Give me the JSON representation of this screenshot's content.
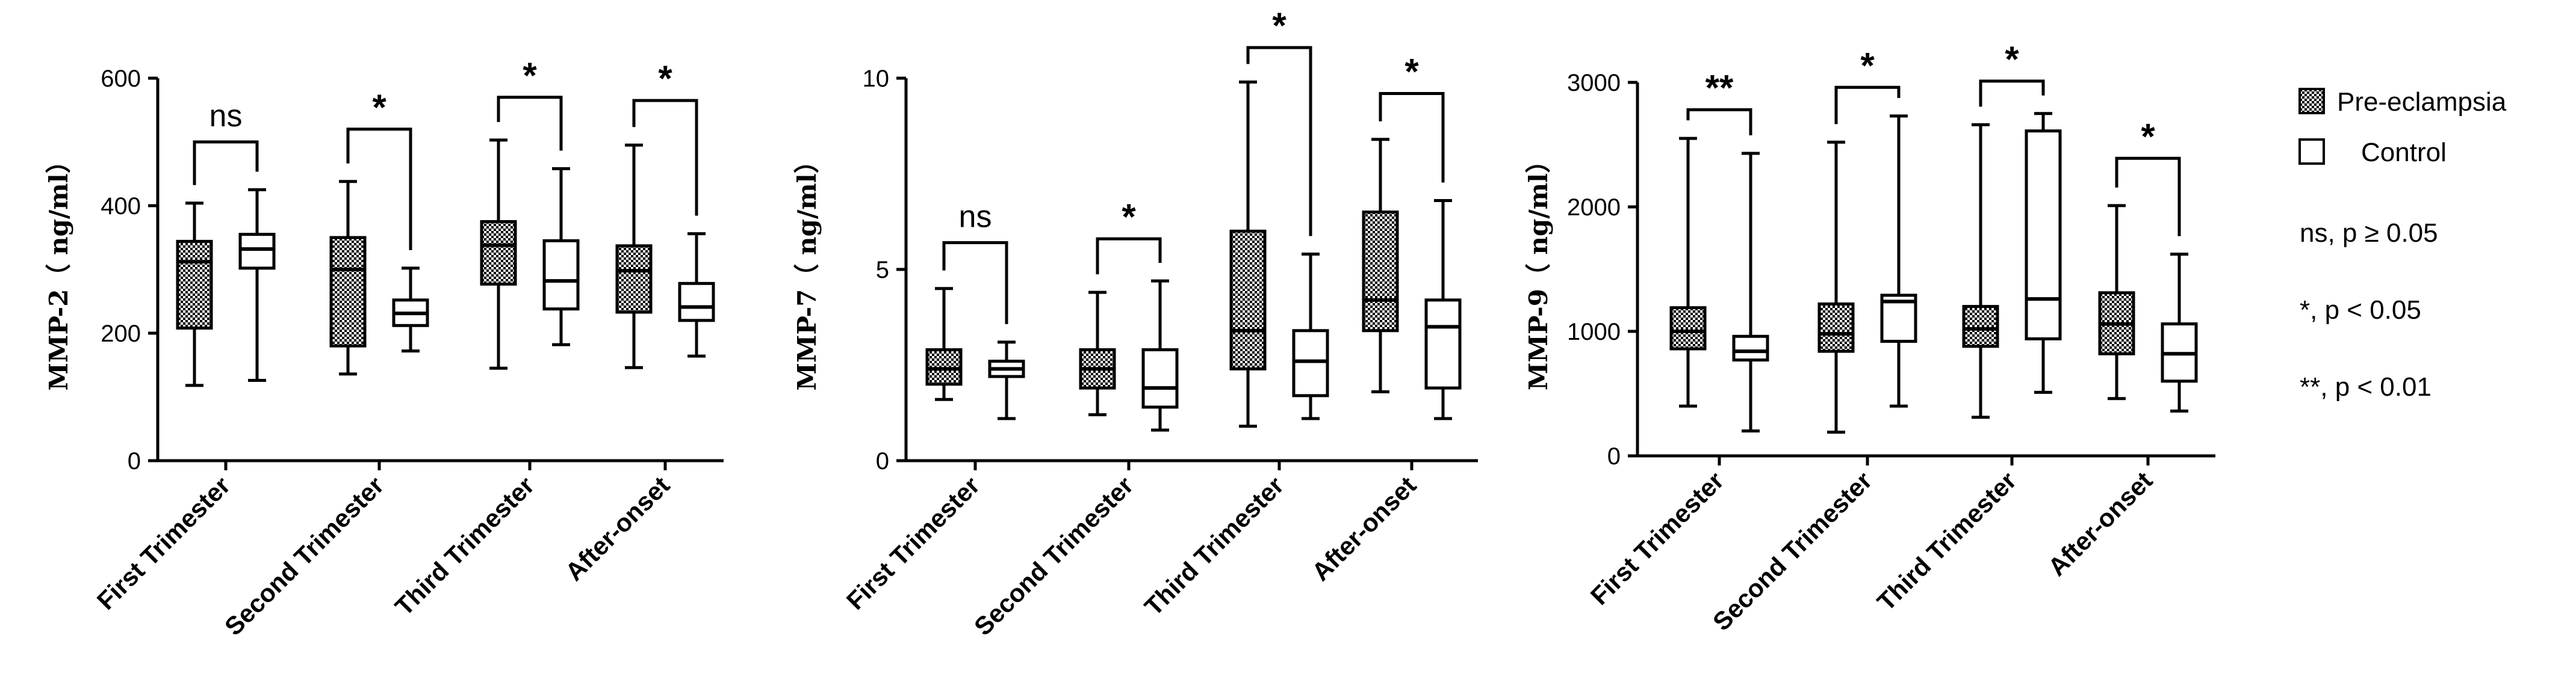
{
  "legend": {
    "series": [
      {
        "name": "Pre-eclampsia",
        "pattern": "crosshatch"
      },
      {
        "name": "Control",
        "pattern": "none"
      }
    ],
    "notes": [
      "ns, p ≥ 0.05",
      "*, p < 0.05",
      "**, p < 0.01"
    ]
  },
  "colors": {
    "stroke": "#000000",
    "hatch": "#000000",
    "background": "#ffffff"
  },
  "chart_data": [
    {
      "type": "box",
      "ylabel": "MMP-2（ ng/ml）",
      "ylim": [
        0,
        600
      ],
      "yticks": [
        0,
        200,
        400,
        600
      ],
      "categories": [
        "First Trimester",
        "Second Trimester",
        "Third Trimester",
        "After-onset"
      ],
      "series": [
        {
          "name": "Pre-eclampsia",
          "boxes": [
            {
              "min": 118,
              "q1": 208,
              "median": 312,
              "q3": 344,
              "max": 404
            },
            {
              "min": 136,
              "q1": 180,
              "median": 300,
              "q3": 350,
              "max": 438
            },
            {
              "min": 145,
              "q1": 277,
              "median": 338,
              "q3": 375,
              "max": 503
            },
            {
              "min": 146,
              "q1": 233,
              "median": 298,
              "q3": 337,
              "max": 495
            }
          ]
        },
        {
          "name": "Control",
          "boxes": [
            {
              "min": 126,
              "q1": 302,
              "median": 332,
              "q3": 355,
              "max": 425
            },
            {
              "min": 172,
              "q1": 212,
              "median": 231,
              "q3": 252,
              "max": 302
            },
            {
              "min": 182,
              "q1": 238,
              "median": 282,
              "q3": 345,
              "max": 458
            },
            {
              "min": 164,
              "q1": 220,
              "median": 241,
              "q3": 278,
              "max": 356
            }
          ]
        }
      ],
      "significance": [
        {
          "label": "ns",
          "bracket": 500
        },
        {
          "label": "*",
          "bracket": 520
        },
        {
          "label": "*",
          "bracket": 570
        },
        {
          "label": "*",
          "bracket": 565
        }
      ]
    },
    {
      "type": "box",
      "ylabel": "MMP-7（ ng/ml）",
      "ylim": [
        0,
        10
      ],
      "yticks": [
        0,
        5,
        10
      ],
      "categories": [
        "First Trimester",
        "Second Trimester",
        "Third Trimester",
        "After-onset"
      ],
      "series": [
        {
          "name": "Pre-eclampsia",
          "boxes": [
            {
              "min": 1.6,
              "q1": 2.0,
              "median": 2.4,
              "q3": 2.9,
              "max": 4.5
            },
            {
              "min": 1.2,
              "q1": 1.9,
              "median": 2.4,
              "q3": 2.9,
              "max": 4.4
            },
            {
              "min": 0.9,
              "q1": 2.4,
              "median": 3.4,
              "q3": 6.0,
              "max": 9.9
            },
            {
              "min": 1.8,
              "q1": 3.4,
              "median": 4.2,
              "q3": 6.5,
              "max": 8.4
            }
          ]
        },
        {
          "name": "Control",
          "boxes": [
            {
              "min": 1.1,
              "q1": 2.2,
              "median": 2.4,
              "q3": 2.6,
              "max": 3.1
            },
            {
              "min": 0.8,
              "q1": 1.4,
              "median": 1.9,
              "q3": 2.9,
              "max": 4.7
            },
            {
              "min": 1.1,
              "q1": 1.7,
              "median": 2.6,
              "q3": 3.4,
              "max": 5.4
            },
            {
              "min": 1.1,
              "q1": 1.9,
              "median": 3.5,
              "q3": 4.2,
              "max": 6.8
            }
          ]
        }
      ],
      "significance": [
        {
          "label": "ns",
          "bracket": 5.7
        },
        {
          "label": "*",
          "bracket": 5.8
        },
        {
          "label": "*",
          "bracket": 10.8
        },
        {
          "label": "*",
          "bracket": 9.6
        }
      ]
    },
    {
      "type": "box",
      "ylabel": "MMP-9（ ng/ml）",
      "ylim": [
        0,
        3000
      ],
      "yticks": [
        0,
        1000,
        2000,
        3000
      ],
      "categories": [
        "First Trimester",
        "Second Trimester",
        "Third Trimester",
        "After-onset"
      ],
      "series": [
        {
          "name": "Pre-eclampsia",
          "boxes": [
            {
              "min": 400,
              "q1": 860,
              "median": 1000,
              "q3": 1190,
              "max": 2550
            },
            {
              "min": 190,
              "q1": 840,
              "median": 980,
              "q3": 1220,
              "max": 2520
            },
            {
              "min": 310,
              "q1": 880,
              "median": 1020,
              "q3": 1200,
              "max": 2660
            },
            {
              "min": 460,
              "q1": 820,
              "median": 1060,
              "q3": 1310,
              "max": 2010
            }
          ]
        },
        {
          "name": "Control",
          "boxes": [
            {
              "min": 200,
              "q1": 770,
              "median": 840,
              "q3": 960,
              "max": 2430
            },
            {
              "min": 400,
              "q1": 920,
              "median": 1240,
              "q3": 1290,
              "max": 2730
            },
            {
              "min": 510,
              "q1": 940,
              "median": 1260,
              "q3": 2610,
              "max": 2750
            },
            {
              "min": 360,
              "q1": 600,
              "median": 820,
              "q3": 1060,
              "max": 1620
            }
          ]
        }
      ],
      "significance": [
        {
          "label": "**",
          "bracket": 2780
        },
        {
          "label": "*",
          "bracket": 2960
        },
        {
          "label": "*",
          "bracket": 3010
        },
        {
          "label": "*",
          "bracket": 2390
        }
      ]
    }
  ]
}
